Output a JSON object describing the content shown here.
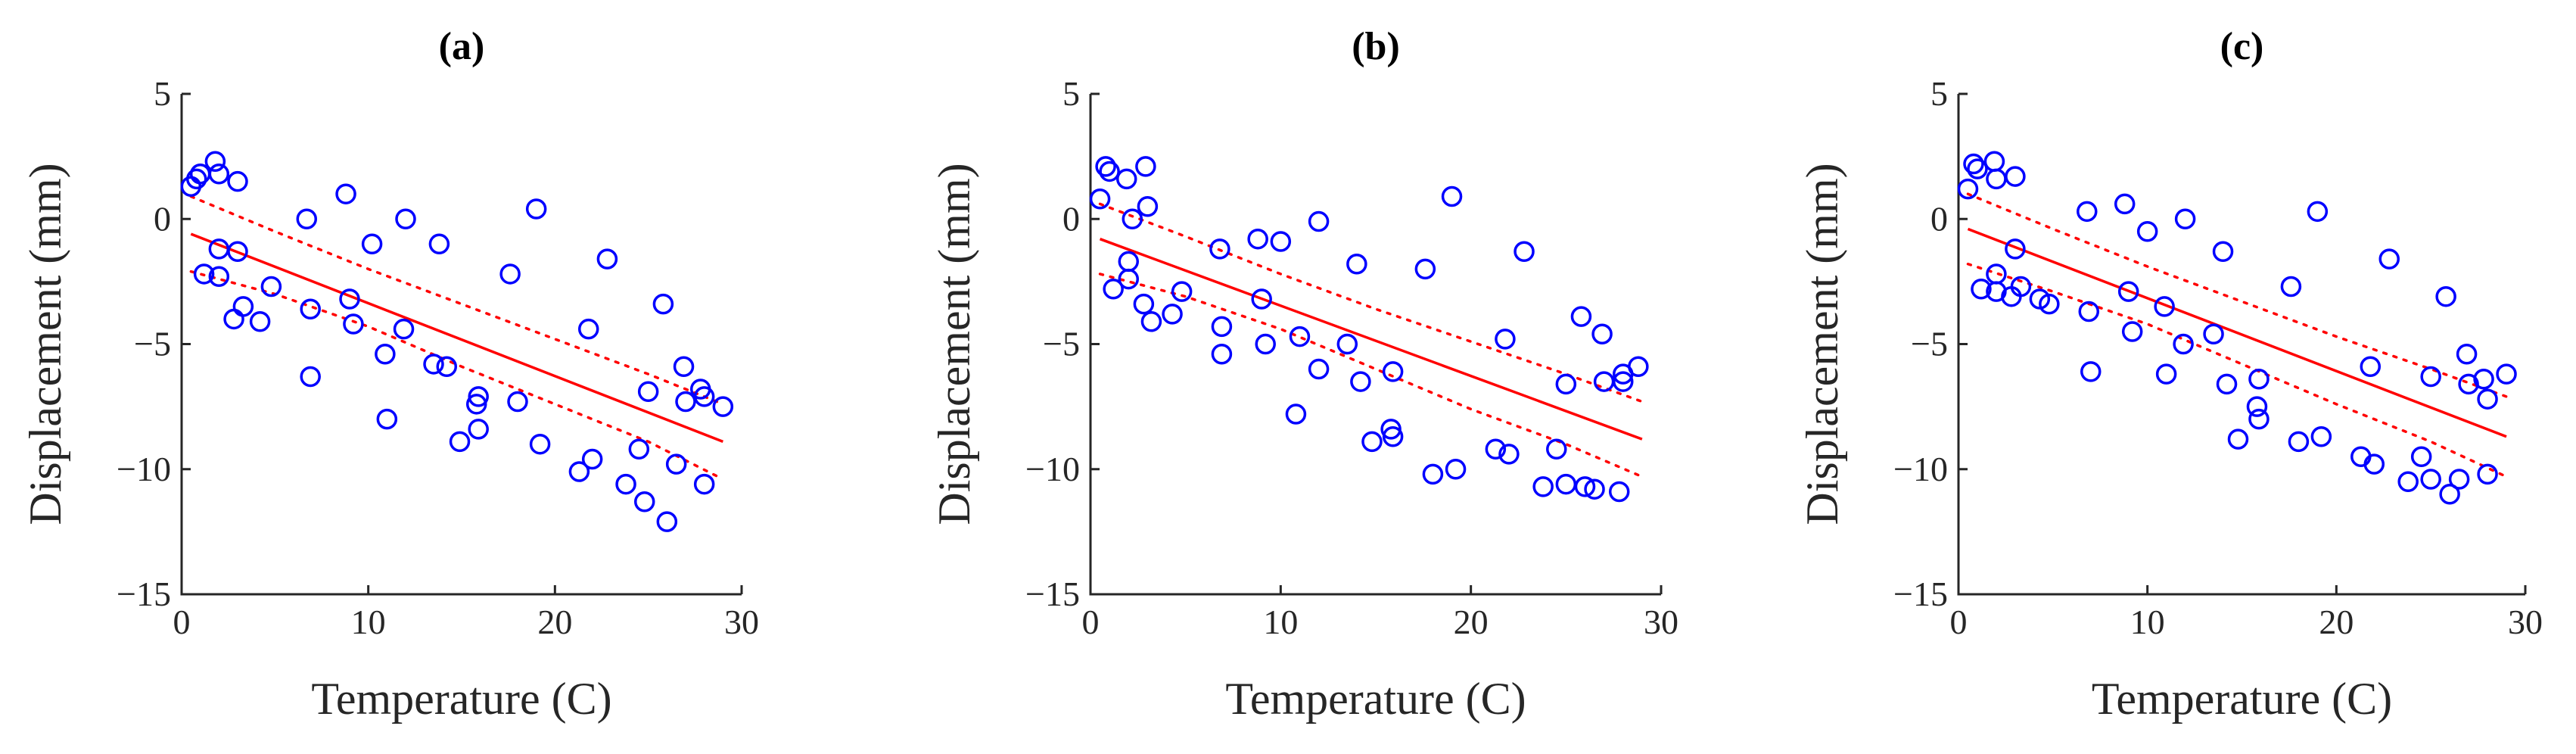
{
  "colors": {
    "points": "#0000ff",
    "fit": "#ff0000",
    "axes": "#262626"
  },
  "chart_data": [
    {
      "type": "scatter",
      "title": "(a)",
      "xlabel": "Temperature (C)",
      "ylabel": "Displacement (mm)",
      "xlim": [
        0,
        30
      ],
      "ylim": [
        -15,
        5
      ],
      "xticks": [
        0,
        10,
        20,
        30
      ],
      "yticks": [
        5,
        0,
        -5,
        -10,
        -15
      ],
      "grid": false,
      "fit": {
        "x": [
          0.5,
          29
        ],
        "y": [
          -0.6,
          -8.9
        ]
      },
      "ci_upper": {
        "x": [
          0.5,
          5,
          10,
          15,
          20,
          25,
          29
        ],
        "y": [
          0.9,
          -0.5,
          -2.0,
          -3.4,
          -4.8,
          -6.2,
          -7.4
        ]
      },
      "ci_lower": {
        "x": [
          0.5,
          5,
          10,
          15,
          20,
          25,
          29
        ],
        "y": [
          -2.1,
          -3.0,
          -4.3,
          -5.9,
          -7.4,
          -8.9,
          -10.4
        ]
      },
      "points": [
        [
          0.5,
          1.3
        ],
        [
          0.8,
          1.6
        ],
        [
          1.0,
          1.8
        ],
        [
          1.2,
          -2.2
        ],
        [
          1.8,
          2.3
        ],
        [
          2.0,
          1.8
        ],
        [
          2.0,
          -1.2
        ],
        [
          2.0,
          -2.3
        ],
        [
          2.8,
          -4.0
        ],
        [
          3.0,
          1.5
        ],
        [
          3.0,
          -1.3
        ],
        [
          3.3,
          -3.5
        ],
        [
          4.2,
          -4.1
        ],
        [
          4.8,
          -2.7
        ],
        [
          6.7,
          0.0
        ],
        [
          6.9,
          -3.6
        ],
        [
          6.9,
          -6.3
        ],
        [
          8.8,
          1.0
        ],
        [
          9.0,
          -3.2
        ],
        [
          9.2,
          -4.2
        ],
        [
          10.2,
          -1.0
        ],
        [
          10.9,
          -5.4
        ],
        [
          11.0,
          -8.0
        ],
        [
          11.9,
          -4.4
        ],
        [
          12.0,
          0.0
        ],
        [
          13.5,
          -5.8
        ],
        [
          13.8,
          -1.0
        ],
        [
          14.2,
          -5.9
        ],
        [
          14.9,
          -8.9
        ],
        [
          15.8,
          -7.4
        ],
        [
          15.9,
          -7.1
        ],
        [
          15.9,
          -8.4
        ],
        [
          17.6,
          -2.2
        ],
        [
          18.0,
          -7.3
        ],
        [
          19.0,
          0.4
        ],
        [
          19.2,
          -9.0
        ],
        [
          21.3,
          -10.1
        ],
        [
          21.8,
          -4.4
        ],
        [
          22.0,
          -9.6
        ],
        [
          22.8,
          -1.6
        ],
        [
          23.8,
          -10.6
        ],
        [
          24.5,
          -9.2
        ],
        [
          24.8,
          -11.3
        ],
        [
          25.0,
          -6.9
        ],
        [
          25.8,
          -3.4
        ],
        [
          26.0,
          -12.1
        ],
        [
          26.5,
          -9.8
        ],
        [
          26.9,
          -5.9
        ],
        [
          27.0,
          -7.3
        ],
        [
          27.8,
          -6.8
        ],
        [
          28.0,
          -10.6
        ],
        [
          28.0,
          -7.1
        ],
        [
          29.0,
          -7.5
        ]
      ]
    },
    {
      "type": "scatter",
      "title": "(b)",
      "xlabel": "Temperature (C)",
      "ylabel": "Displacement (mm)",
      "xlim": [
        0,
        30
      ],
      "ylim": [
        -15,
        5
      ],
      "xticks": [
        0,
        10,
        20,
        30
      ],
      "yticks": [
        5,
        0,
        -5,
        -10,
        -15
      ],
      "grid": false,
      "fit": {
        "x": [
          0.5,
          29
        ],
        "y": [
          -0.8,
          -8.8
        ]
      },
      "ci_upper": {
        "x": [
          0.5,
          5,
          10,
          15,
          20,
          25,
          29
        ],
        "y": [
          0.6,
          -0.7,
          -2.2,
          -3.6,
          -4.9,
          -6.2,
          -7.3
        ]
      },
      "ci_lower": {
        "x": [
          0.5,
          5,
          10,
          15,
          20,
          25,
          29
        ],
        "y": [
          -2.2,
          -3.1,
          -4.4,
          -6.0,
          -7.6,
          -9.0,
          -10.3
        ]
      },
      "points": [
        [
          0.5,
          0.8
        ],
        [
          0.8,
          2.1
        ],
        [
          1.0,
          1.9
        ],
        [
          1.2,
          -2.8
        ],
        [
          1.9,
          1.6
        ],
        [
          2.0,
          -1.7
        ],
        [
          2.0,
          -2.4
        ],
        [
          2.2,
          0.0
        ],
        [
          2.8,
          -3.4
        ],
        [
          2.9,
          2.1
        ],
        [
          3.0,
          0.5
        ],
        [
          3.2,
          -4.1
        ],
        [
          4.3,
          -3.8
        ],
        [
          4.8,
          -2.9
        ],
        [
          6.8,
          -1.2
        ],
        [
          6.9,
          -4.3
        ],
        [
          6.9,
          -5.4
        ],
        [
          8.8,
          -0.8
        ],
        [
          9.0,
          -3.2
        ],
        [
          9.2,
          -5.0
        ],
        [
          10.0,
          -0.9
        ],
        [
          10.8,
          -7.8
        ],
        [
          11.0,
          -4.7
        ],
        [
          12.0,
          -6.0
        ],
        [
          12.0,
          -0.1
        ],
        [
          13.5,
          -5.0
        ],
        [
          14.0,
          -1.8
        ],
        [
          14.2,
          -6.5
        ],
        [
          14.8,
          -8.9
        ],
        [
          15.8,
          -8.4
        ],
        [
          15.9,
          -8.7
        ],
        [
          15.9,
          -6.1
        ],
        [
          17.6,
          -2.0
        ],
        [
          18.0,
          -10.2
        ],
        [
          19.0,
          0.9
        ],
        [
          19.2,
          -10.0
        ],
        [
          21.3,
          -9.2
        ],
        [
          21.8,
          -4.8
        ],
        [
          22.0,
          -9.4
        ],
        [
          22.8,
          -1.3
        ],
        [
          23.8,
          -10.7
        ],
        [
          24.5,
          -9.2
        ],
        [
          25.0,
          -10.6
        ],
        [
          25.0,
          -6.6
        ],
        [
          25.8,
          -3.9
        ],
        [
          26.0,
          -10.7
        ],
        [
          26.5,
          -10.8
        ],
        [
          26.9,
          -4.6
        ],
        [
          27.0,
          -6.5
        ],
        [
          27.8,
          -10.9
        ],
        [
          28.0,
          -6.2
        ],
        [
          28.0,
          -6.5
        ],
        [
          28.8,
          -5.9
        ]
      ]
    },
    {
      "type": "scatter",
      "title": "(c)",
      "xlabel": "Temperature (C)",
      "ylabel": "Displacement (mm)",
      "xlim": [
        0,
        30
      ],
      "ylim": [
        -15,
        5
      ],
      "xticks": [
        0,
        10,
        20,
        30
      ],
      "yticks": [
        5,
        0,
        -5,
        -10,
        -15
      ],
      "grid": false,
      "fit": {
        "x": [
          0.5,
          29
        ],
        "y": [
          -0.4,
          -8.7
        ]
      },
      "ci_upper": {
        "x": [
          0.5,
          5,
          10,
          15,
          20,
          25,
          29
        ],
        "y": [
          1.0,
          -0.4,
          -1.9,
          -3.3,
          -4.7,
          -6.0,
          -7.1
        ]
      },
      "ci_lower": {
        "x": [
          0.5,
          5,
          10,
          15,
          20,
          25,
          29
        ],
        "y": [
          -1.8,
          -2.9,
          -4.2,
          -5.8,
          -7.4,
          -8.9,
          -10.3
        ]
      },
      "points": [
        [
          0.5,
          1.2
        ],
        [
          0.8,
          2.2
        ],
        [
          1.0,
          2.0
        ],
        [
          1.2,
          -2.8
        ],
        [
          1.9,
          2.3
        ],
        [
          2.0,
          -2.2
        ],
        [
          2.0,
          -2.9
        ],
        [
          2.0,
          1.6
        ],
        [
          2.8,
          -3.1
        ],
        [
          3.0,
          1.7
        ],
        [
          3.0,
          -1.2
        ],
        [
          3.3,
          -2.7
        ],
        [
          4.3,
          -3.2
        ],
        [
          4.8,
          -3.4
        ],
        [
          6.8,
          0.3
        ],
        [
          6.9,
          -3.7
        ],
        [
          7.0,
          -6.1
        ],
        [
          8.8,
          0.6
        ],
        [
          9.0,
          -2.9
        ],
        [
          9.2,
          -4.5
        ],
        [
          10.0,
          -0.5
        ],
        [
          10.9,
          -3.5
        ],
        [
          11.0,
          -6.2
        ],
        [
          11.9,
          -5.0
        ],
        [
          12.0,
          0.0
        ],
        [
          13.5,
          -4.6
        ],
        [
          14.0,
          -1.3
        ],
        [
          14.2,
          -6.6
        ],
        [
          14.8,
          -8.8
        ],
        [
          15.8,
          -7.5
        ],
        [
          15.9,
          -8.0
        ],
        [
          15.9,
          -6.4
        ],
        [
          17.6,
          -2.7
        ],
        [
          18.0,
          -8.9
        ],
        [
          19.0,
          0.3
        ],
        [
          19.2,
          -8.7
        ],
        [
          21.3,
          -9.5
        ],
        [
          21.8,
          -5.9
        ],
        [
          22.0,
          -9.8
        ],
        [
          22.8,
          -1.6
        ],
        [
          23.8,
          -10.5
        ],
        [
          24.5,
          -9.5
        ],
        [
          25.0,
          -10.4
        ],
        [
          25.0,
          -6.3
        ],
        [
          25.8,
          -3.1
        ],
        [
          26.0,
          -11.0
        ],
        [
          26.5,
          -10.4
        ],
        [
          26.9,
          -5.4
        ],
        [
          27.0,
          -6.6
        ],
        [
          27.8,
          -6.4
        ],
        [
          28.0,
          -10.2
        ],
        [
          28.0,
          -7.2
        ],
        [
          29.0,
          -6.2
        ]
      ]
    }
  ]
}
